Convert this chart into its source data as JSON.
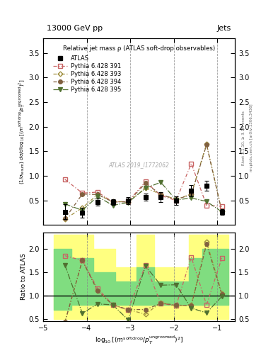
{
  "title_top": "13000 GeV pp",
  "title_right": "Jets",
  "plot_title": "Relative jet mass ρ (ATLAS soft-drop observables)",
  "watermark": "ATLAS 2019_I1772062",
  "right_label1": "Rivet 3.1.10, ≥ 3.1M events",
  "right_label2": "mcplots.cern.ch [arXiv:1306.3436]",
  "x_vals": [
    -4.5,
    -4.1,
    -3.75,
    -3.4,
    -3.05,
    -2.65,
    -2.3,
    -1.95,
    -1.6,
    -1.25,
    -0.9
  ],
  "atlas_y": [
    0.27,
    0.25,
    0.47,
    0.47,
    0.5,
    0.57,
    0.57,
    0.5,
    0.7,
    0.8,
    0.27
  ],
  "atlas_yerr": [
    0.15,
    0.1,
    0.07,
    0.06,
    0.07,
    0.07,
    0.1,
    0.09,
    0.12,
    0.1,
    0.06
  ],
  "p391_y": [
    0.93,
    0.65,
    0.67,
    0.47,
    0.48,
    0.88,
    0.6,
    0.5,
    1.25,
    0.4,
    0.38
  ],
  "p393_y": [
    0.12,
    0.35,
    0.62,
    0.48,
    0.47,
    0.75,
    0.63,
    0.52,
    0.63,
    1.65,
    0.28
  ],
  "p394_y": [
    0.13,
    0.63,
    0.62,
    0.47,
    0.47,
    0.85,
    0.62,
    0.52,
    0.62,
    1.63,
    0.27
  ],
  "p395_y": [
    0.43,
    0.3,
    0.58,
    0.4,
    0.46,
    0.75,
    0.87,
    0.51,
    0.55,
    0.48,
    0.27
  ],
  "ratio_391": [
    1.85,
    1.75,
    1.15,
    0.8,
    0.69,
    1.65,
    0.83,
    0.78,
    1.82,
    0.8,
    1.8
  ],
  "ratio_393": [
    0.43,
    1.75,
    1.1,
    0.8,
    0.7,
    0.6,
    0.85,
    0.78,
    0.8,
    2.15,
    1.05
  ],
  "ratio_394": [
    0.43,
    1.75,
    1.1,
    0.8,
    0.7,
    0.7,
    0.83,
    0.8,
    0.78,
    2.1,
    1.02
  ],
  "ratio_395": [
    1.65,
    0.62,
    0.82,
    0.8,
    0.48,
    1.63,
    1.22,
    1.23,
    0.73,
    0.63,
    0.98
  ],
  "band_edges": [
    -4.75,
    -4.35,
    -3.85,
    -3.35,
    -2.85,
    -2.45,
    -2.05,
    -1.65,
    -1.35,
    -0.75
  ],
  "band_yellow_low": [
    0.5,
    0.5,
    0.5,
    0.5,
    0.5,
    0.5,
    0.5,
    0.5,
    0.5
  ],
  "band_yellow_high": [
    2.3,
    2.3,
    2.0,
    1.6,
    2.3,
    1.6,
    1.6,
    2.3,
    2.3
  ],
  "band_green_low": [
    0.7,
    0.8,
    0.8,
    0.8,
    0.8,
    0.8,
    0.8,
    0.8,
    0.8
  ],
  "band_green_high": [
    2.0,
    1.8,
    1.5,
    1.3,
    1.6,
    1.3,
    1.3,
    1.8,
    2.0
  ],
  "color_atlas": "#000000",
  "color_391": "#c86464",
  "color_393": "#a09040",
  "color_394": "#806040",
  "color_395": "#507030",
  "xlim": [
    -4.9,
    -0.6
  ],
  "ylim_main": [
    0.0,
    3.8
  ],
  "ylim_ratio": [
    0.45,
    2.35
  ],
  "yticks_main": [
    0.5,
    1.0,
    1.5,
    2.0,
    2.5,
    3.0,
    3.5
  ],
  "yticks_ratio": [
    0.5,
    1.0,
    1.5,
    2.0
  ],
  "xticks": [
    -5,
    -4,
    -3,
    -2,
    -1
  ]
}
